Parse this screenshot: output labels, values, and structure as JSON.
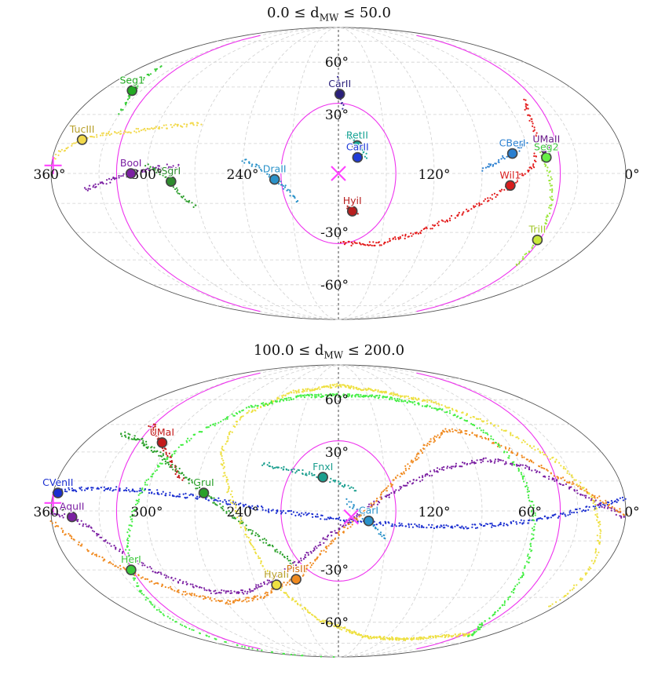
{
  "chart_data": [
    {
      "type": "scatter",
      "projection": "mollweide",
      "title": "0.0 ≤ d_MW ≤ 50.0",
      "title_parts": {
        "prefix": "0.0 ≤ d",
        "sub": "MW",
        "suffix": " ≤ 50.0"
      },
      "x_ticks": [
        "360°",
        "300°",
        "240°",
        "120°",
        "0°"
      ],
      "x_tick_values": [
        360,
        300,
        240,
        120,
        0
      ],
      "y_ticks": [
        "60°",
        "30°",
        "-30°",
        "-60°"
      ],
      "y_tick_values": [
        60,
        30,
        -30,
        -60
      ],
      "xlim": [
        0,
        360
      ],
      "ylim": [
        -90,
        90
      ],
      "grid": true,
      "markers": {
        "cross": {
          "lon": 180,
          "lat": 0,
          "color": "#ff44ff"
        },
        "plus": {
          "lon": 359,
          "lat": 4,
          "color": "#ff44ff"
        }
      },
      "circle": {
        "center_lon": 180,
        "center_lat": 0,
        "radius_deg": 36,
        "color": "#ee33ee"
      },
      "boundary_color": "#ee33ee",
      "objects": [
        {
          "name": "Seg1",
          "lon": 337,
          "lat": 43,
          "color": "#22aa22",
          "text": "#22aa22"
        },
        {
          "name": "TucIII",
          "lon": 345,
          "lat": 17,
          "color": "#f2d94b",
          "text": "#b8a02a"
        },
        {
          "name": "BooI",
          "lon": 310,
          "lat": 0,
          "color": "#7b1fa2",
          "text": "#7b1fa2"
        },
        {
          "name": "SgrI",
          "lon": 285,
          "lat": -4,
          "color": "#2e8b2e",
          "text": "#2e8b2e"
        },
        {
          "name": "CarII",
          "lon": 179,
          "lat": 41,
          "color": "#2a1f7a",
          "text": "#2a1f7a"
        },
        {
          "name": "RetII",
          "lon": 168,
          "lat": 14,
          "color": "#17a394",
          "text": "#17a394"
        },
        {
          "name": "CarII",
          "lon": 168,
          "lat": 8,
          "color": "#1f3bd8",
          "text": "#1f3bd8"
        },
        {
          "name": "DraII",
          "lon": 220,
          "lat": -3,
          "color": "#2a92c9",
          "text": "#2a92c9"
        },
        {
          "name": "HyiI",
          "lon": 171,
          "lat": -19,
          "color": "#b81f1f",
          "text": "#b81f1f"
        },
        {
          "name": "CBerI",
          "lon": 70,
          "lat": 10,
          "color": "#2a7fd0",
          "text": "#2a7fd0"
        },
        {
          "name": "UMaII",
          "lon": 48,
          "lat": 12,
          "color": "#6a1a8a",
          "text": "#6a1a8a"
        },
        {
          "name": "Wil1",
          "lon": 72,
          "lat": -6,
          "color": "#d81d1d",
          "text": "#d81d1d"
        },
        {
          "name": "Seg2",
          "lon": 49,
          "lat": 8,
          "color": "#66ee44",
          "text": "#3fc43f"
        },
        {
          "name": "TriII",
          "lon": 40,
          "lat": -34,
          "color": "#c8e83a",
          "text": "#a3c72a"
        }
      ],
      "streams": [
        {
          "color": "#33cc33",
          "points": [
            [
              344,
              58
            ],
            [
              340,
              50
            ],
            [
              336,
              43
            ],
            [
              332,
              36
            ],
            [
              330,
              31
            ]
          ]
        },
        {
          "color": "#f2d94b",
          "points": [
            [
              272,
              25
            ],
            [
              290,
              24
            ],
            [
              310,
              22
            ],
            [
              330,
              20
            ],
            [
              346,
              17
            ],
            [
              356,
              11
            ],
            [
              360,
              7
            ]
          ]
        },
        {
          "color": "#7b1fa2",
          "points": [
            [
              340,
              -8
            ],
            [
              325,
              -4
            ],
            [
              310,
              0
            ],
            [
              295,
              3
            ],
            [
              280,
              4
            ]
          ]
        },
        {
          "color": "#2e9e2e",
          "points": [
            [
              300,
              4
            ],
            [
              293,
              1
            ],
            [
              285,
              -4
            ],
            [
              278,
              -12
            ],
            [
              272,
              -17
            ]
          ]
        },
        {
          "color": "#3a2a9a",
          "points": [
            [
              181,
              50
            ],
            [
              180,
              44
            ],
            [
              178,
              38
            ],
            [
              176,
              34
            ]
          ]
        },
        {
          "color": "#1aa898",
          "points": [
            [
              174,
              20
            ],
            [
              170,
              16
            ],
            [
              166,
              12
            ],
            [
              162,
              8
            ]
          ]
        },
        {
          "color": "#2a92c9",
          "points": [
            [
              240,
              7
            ],
            [
              230,
              3
            ],
            [
              220,
              -3
            ],
            [
              212,
              -8
            ],
            [
              206,
              -14
            ]
          ]
        },
        {
          "color": "#b81f1f",
          "points": [
            [
              175,
              -17
            ],
            [
              171,
              -19
            ],
            [
              168,
              -20
            ]
          ]
        },
        {
          "color": "#2a7fd0",
          "points": [
            [
              90,
              2
            ],
            [
              80,
              6
            ],
            [
              70,
              10
            ],
            [
              60,
              15
            ]
          ]
        },
        {
          "color": "#e31a1a",
          "points": [
            [
              178,
              -36
            ],
            [
              150,
              -36
            ],
            [
              125,
              -30
            ],
            [
              100,
              -20
            ],
            [
              85,
              -13
            ],
            [
              72,
              -6
            ],
            [
              58,
              4
            ],
            [
              52,
              18
            ],
            [
              50,
              30
            ],
            [
              45,
              38
            ]
          ]
        },
        {
          "color": "#9be63a",
          "points": [
            [
              52,
              10
            ],
            [
              48,
              0
            ],
            [
              44,
              -15
            ],
            [
              40,
              -34
            ],
            [
              38,
              -44
            ],
            [
              36,
              -48
            ]
          ]
        }
      ]
    },
    {
      "type": "scatter",
      "projection": "mollweide",
      "title": "100.0 ≤ d_MW ≤ 200.0",
      "title_parts": {
        "prefix": "100.0 ≤ d",
        "sub": "MW",
        "suffix": " ≤ 200.0"
      },
      "x_ticks": [
        "360°",
        "300°",
        "240°",
        "120°",
        "60°",
        "0°"
      ],
      "x_tick_values": [
        360,
        300,
        240,
        120,
        60,
        0
      ],
      "y_ticks": [
        "60°",
        "30°",
        "-30°",
        "-60°"
      ],
      "y_tick_values": [
        60,
        30,
        -30,
        -60
      ],
      "xlim": [
        0,
        360
      ],
      "ylim": [
        -90,
        90
      ],
      "grid": true,
      "markers": {
        "cross": {
          "lon": 172,
          "lat": -3,
          "color": "#ff44ff"
        },
        "plus": {
          "lon": 359,
          "lat": 4,
          "color": "#ff44ff"
        }
      },
      "circle": {
        "center_lon": 180,
        "center_lat": 0,
        "radius_deg": 36,
        "color": "#ee33ee"
      },
      "boundary_color": "#ee33ee",
      "objects": [
        {
          "name": "UMaI",
          "lon": 305,
          "lat": 35,
          "color": "#c41a1a",
          "text": "#c41a1a"
        },
        {
          "name": "CVenII",
          "lon": 357,
          "lat": 9,
          "color": "#1a2ed0",
          "text": "#1a2ed0"
        },
        {
          "name": "AquII",
          "lon": 347,
          "lat": -3,
          "color": "#7b1fa2",
          "text": "#7b1fa2"
        },
        {
          "name": "GruI",
          "lon": 265,
          "lat": 9,
          "color": "#2aa02a",
          "text": "#2aa02a"
        },
        {
          "name": "FnxI",
          "lon": 190,
          "lat": 17,
          "color": "#1a9e8e",
          "text": "#1a9e8e"
        },
        {
          "name": "CarI",
          "lon": 161,
          "lat": -5,
          "color": "#2a92c9",
          "text": "#2a92c9"
        },
        {
          "name": "HerI",
          "lon": 322,
          "lat": -30,
          "color": "#3cc83c",
          "text": "#3cc83c"
        },
        {
          "name": "HyaII",
          "lon": 225,
          "lat": -38,
          "color": "#eee040",
          "text": "#b8a02a"
        },
        {
          "name": "PisII",
          "lon": 210,
          "lat": -35,
          "color": "#f08a20",
          "text": "#d07010"
        }
      ],
      "streams": [
        {
          "color": "#1a2ed0",
          "points": [
            [
              360,
              10
            ],
            [
              340,
              11
            ],
            [
              320,
              11
            ],
            [
              300,
              10
            ],
            [
              280,
              8
            ],
            [
              260,
              6
            ],
            [
              240,
              3
            ],
            [
              220,
              0
            ],
            [
              200,
              -2
            ],
            [
              180,
              -4
            ],
            [
              160,
              -6
            ],
            [
              140,
              -7
            ],
            [
              120,
              -8
            ],
            [
              100,
              -8
            ],
            [
              80,
              -7
            ],
            [
              60,
              -5
            ],
            [
              40,
              -2
            ],
            [
              20,
              2
            ],
            [
              0,
              6
            ]
          ]
        },
        {
          "color": "#c41a1a",
          "points": [
            [
              325,
              45
            ],
            [
              315,
              40
            ],
            [
              305,
              35
            ],
            [
              295,
              28
            ],
            [
              285,
              20
            ],
            [
              280,
              16
            ]
          ]
        },
        {
          "color": "#2aa02a",
          "points": [
            [
              340,
              40
            ],
            [
              320,
              36
            ],
            [
              300,
              28
            ],
            [
              280,
              18
            ],
            [
              265,
              9
            ],
            [
              250,
              0
            ],
            [
              235,
              -10
            ],
            [
              220,
              -20
            ],
            [
              210,
              -27
            ]
          ]
        },
        {
          "color": "#1a9e8e",
          "points": [
            [
              230,
              24
            ],
            [
              215,
              21
            ],
            [
              200,
              19
            ],
            [
              190,
              17
            ],
            [
              180,
              14
            ],
            [
              170,
              10
            ]
          ]
        },
        {
          "color": "#2a92c9",
          "points": [
            [
              175,
              5
            ],
            [
              168,
              0
            ],
            [
              161,
              -5
            ],
            [
              155,
              -10
            ],
            [
              150,
              -14
            ]
          ]
        },
        {
          "color": "#7b1fa2",
          "points": [
            [
              360,
              -1
            ],
            [
              347,
              -3
            ],
            [
              335,
              -10
            ],
            [
              320,
              -22
            ],
            [
              300,
              -34
            ],
            [
              275,
              -42
            ],
            [
              250,
              -42
            ],
            [
              225,
              -35
            ],
            [
              205,
              -25
            ],
            [
              185,
              -12
            ],
            [
              165,
              0
            ],
            [
              140,
              12
            ],
            [
              110,
              22
            ],
            [
              80,
              26
            ],
            [
              60,
              23
            ],
            [
              40,
              15
            ],
            [
              20,
              5
            ],
            [
              0,
              -3
            ]
          ]
        },
        {
          "color": "#f08a20",
          "points": [
            [
              360,
              -5
            ],
            [
              340,
              -22
            ],
            [
              322,
              -32
            ],
            [
              300,
              -42
            ],
            [
              270,
              -48
            ],
            [
              240,
              -45
            ],
            [
              220,
              -38
            ],
            [
              210,
              -35
            ],
            [
              195,
              -25
            ],
            [
              180,
              -12
            ],
            [
              160,
              2
            ],
            [
              140,
              18
            ],
            [
              120,
              33
            ],
            [
              100,
              42
            ],
            [
              80,
              40
            ],
            [
              60,
              30
            ],
            [
              40,
              18
            ],
            [
              20,
              8
            ],
            [
              0,
              -2
            ]
          ]
        },
        {
          "color": "#eee040",
          "points": [
            [
              25,
              -68
            ],
            [
              90,
              -72
            ],
            [
              150,
              -70
            ],
            [
              200,
              -58
            ],
            [
              218,
              -45
            ],
            [
              225,
              -38
            ],
            [
              232,
              -25
            ],
            [
              240,
              -8
            ],
            [
              250,
              12
            ],
            [
              260,
              30
            ],
            [
              260,
              50
            ],
            [
              230,
              65
            ],
            [
              180,
              70
            ],
            [
              130,
              65
            ],
            [
              90,
              58
            ],
            [
              60,
              45
            ],
            [
              35,
              25
            ],
            [
              20,
              5
            ],
            [
              10,
              -25
            ],
            [
              5,
              -50
            ]
          ]
        },
        {
          "color": "#44ee44",
          "points": [
            [
              345,
              -90
            ],
            [
              335,
              -55
            ],
            [
              322,
              -30
            ],
            [
              310,
              -5
            ],
            [
              300,
              20
            ],
            [
              285,
              40
            ],
            [
              260,
              55
            ],
            [
              220,
              62
            ],
            [
              180,
              63
            ],
            [
              140,
              62
            ],
            [
              110,
              58
            ],
            [
              85,
              52
            ],
            [
              70,
              40
            ],
            [
              62,
              20
            ],
            [
              58,
              0
            ],
            [
              55,
              -20
            ],
            [
              50,
              -40
            ],
            [
              40,
              -60
            ],
            [
              20,
              -70
            ]
          ]
        }
      ]
    }
  ]
}
